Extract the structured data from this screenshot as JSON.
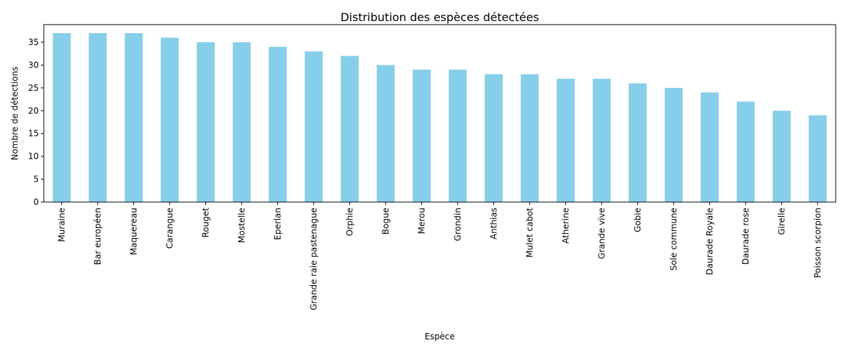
{
  "chart_data": {
    "type": "bar",
    "title": "Distribution des espèces détectées",
    "xlabel": "Espèce",
    "ylabel": "Nombre de détections",
    "categories": [
      "Muraine",
      "Bar européen",
      "Maquereau",
      "Carangue",
      "Rouget",
      "Mostelle",
      "Eperlan",
      "Grande raie pastenague",
      "Orphie",
      "Bogue",
      "Merou",
      "Grondin",
      "Anthias",
      "Mulet cabot",
      "Atherine",
      "Grande vive",
      "Gobie",
      "Sole commune",
      "Daurade Royale",
      "Daurade rose",
      "Girelle",
      "Poisson scorpion"
    ],
    "values": [
      37,
      37,
      37,
      36,
      35,
      35,
      34,
      33,
      32,
      30,
      29,
      29,
      28,
      28,
      27,
      27,
      26,
      25,
      24,
      22,
      20,
      19
    ],
    "ylim": [
      0,
      38.85
    ],
    "yticks": [
      0,
      5,
      10,
      15,
      20,
      25,
      30,
      35
    ],
    "bar_color": "#87ceeb",
    "grid": false,
    "legend": "none"
  }
}
